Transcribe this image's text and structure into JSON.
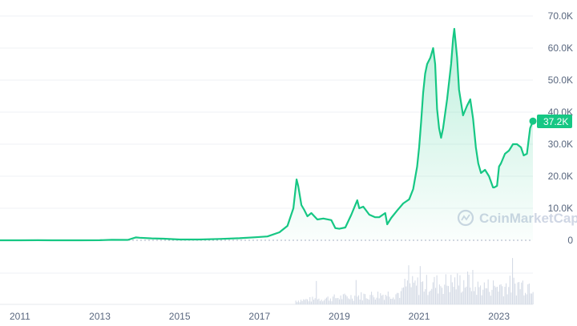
{
  "chart_data": {
    "type": "area",
    "x_label": "",
    "y_label": "",
    "x_ticks": [
      "2011",
      "2013",
      "2015",
      "2017",
      "2019",
      "2021",
      "2023"
    ],
    "y_ticks": [
      "0",
      "10.0K",
      "20.0K",
      "30.0K",
      "40.0K",
      "50.0K",
      "60.0K",
      "70.0K"
    ],
    "ylim": [
      0,
      70000
    ],
    "xlim": [
      2010.5,
      2023.85
    ],
    "current_price_label": "37.2K",
    "watermark": "CoinMarketCap",
    "grid": true,
    "colors": {
      "line": "#16c784",
      "area": "#16c784",
      "volume": "#cfd6e4",
      "label_bg": "#16c784"
    },
    "series": [
      {
        "x": [
          2010.5,
          2011.0,
          2011.45,
          2011.8,
          2012.5,
          2013.0,
          2013.3,
          2013.7,
          2013.9,
          2014.0,
          2014.3,
          2014.6,
          2015.0,
          2015.5,
          2016.0,
          2016.5,
          2016.9,
          2017.2,
          2017.5,
          2017.7,
          2017.85,
          2017.93,
          2017.97,
          2018.05,
          2018.12,
          2018.2,
          2018.3,
          2018.45,
          2018.6,
          2018.8,
          2018.9,
          2019.0,
          2019.15,
          2019.3,
          2019.45,
          2019.5,
          2019.6,
          2019.75,
          2019.9,
          2020.0,
          2020.15,
          2020.2,
          2020.3,
          2020.45,
          2020.6,
          2020.75,
          2020.85,
          2020.95,
          2021.0,
          2021.05,
          2021.1,
          2021.15,
          2021.2,
          2021.28,
          2021.35,
          2021.4,
          2021.45,
          2021.5,
          2021.55,
          2021.6,
          2021.7,
          2021.8,
          2021.85,
          2021.88,
          2021.95,
          2022.0,
          2022.1,
          2022.2,
          2022.28,
          2022.35,
          2022.42,
          2022.48,
          2022.55,
          2022.65,
          2022.75,
          2022.85,
          2022.88,
          2022.95,
          2023.0,
          2023.05,
          2023.15,
          2023.25,
          2023.35,
          2023.45,
          2023.55,
          2023.62,
          2023.7,
          2023.78,
          2023.85
        ],
        "y": [
          0,
          1,
          15,
          3,
          10,
          13,
          150,
          120,
          900,
          800,
          600,
          500,
          260,
          240,
          430,
          650,
          950,
          1200,
          2500,
          4500,
          10000,
          19000,
          17000,
          11000,
          9500,
          7500,
          8500,
          6500,
          6800,
          6300,
          3800,
          3600,
          4000,
          8000,
          12500,
          10000,
          10500,
          8000,
          7200,
          7200,
          8500,
          5000,
          7000,
          9300,
          11500,
          12800,
          16000,
          23000,
          29000,
          37000,
          46000,
          52000,
          55000,
          57000,
          60000,
          55000,
          41000,
          35000,
          32000,
          35000,
          44000,
          55000,
          63000,
          66000,
          57000,
          47000,
          39000,
          42000,
          44000,
          38000,
          29000,
          24000,
          21000,
          22000,
          20000,
          16500,
          16500,
          17000,
          23000,
          24000,
          27000,
          28000,
          30000,
          30000,
          29000,
          26500,
          27000,
          35000,
          37200
        ]
      }
    ]
  }
}
